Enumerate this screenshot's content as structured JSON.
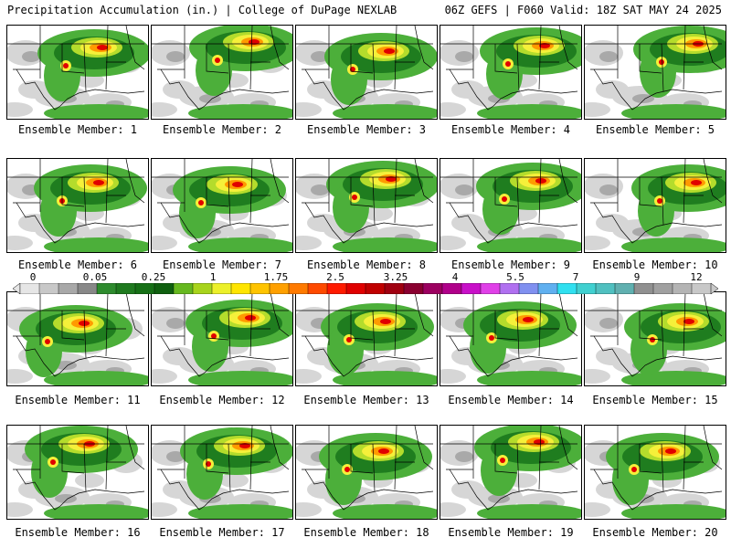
{
  "header": {
    "left": "Precipitation Accumulation (in.) | College of DuPage NEXLAB",
    "right": "06Z GEFS | F060 Valid: 18Z SAT MAY 24 2025"
  },
  "members": [
    {
      "label": "Ensemble Member: 1"
    },
    {
      "label": "Ensemble Member: 2"
    },
    {
      "label": "Ensemble Member: 3"
    },
    {
      "label": "Ensemble Member: 4"
    },
    {
      "label": "Ensemble Member: 5"
    },
    {
      "label": "Ensemble Member: 6"
    },
    {
      "label": "Ensemble Member: 7"
    },
    {
      "label": "Ensemble Member: 8"
    },
    {
      "label": "Ensemble Member: 9"
    },
    {
      "label": "Ensemble Member: 10"
    },
    {
      "label": "Ensemble Member: 11"
    },
    {
      "label": "Ensemble Member: 12"
    },
    {
      "label": "Ensemble Member: 13"
    },
    {
      "label": "Ensemble Member: 14"
    },
    {
      "label": "Ensemble Member: 15"
    },
    {
      "label": "Ensemble Member: 16"
    },
    {
      "label": "Ensemble Member: 17"
    },
    {
      "label": "Ensemble Member: 18"
    },
    {
      "label": "Ensemble Member: 19"
    },
    {
      "label": "Ensemble Member: 20"
    }
  ],
  "colorbar": {
    "tick_labels": [
      "0",
      "0.05",
      "0.25",
      "1",
      "1.75",
      "2.5",
      "3.25",
      "4",
      "5.5",
      "7",
      "9",
      "12"
    ],
    "colors": [
      "#e6e6e6",
      "#c8c8c8",
      "#a8a8a8",
      "#888888",
      "#2e8b2e",
      "#1f7a1f",
      "#167016",
      "#0f5f0f",
      "#66b81f",
      "#a8d41c",
      "#ecf02a",
      "#ffe500",
      "#ffc400",
      "#ffa000",
      "#ff7a00",
      "#ff4a00",
      "#ff1a00",
      "#e00000",
      "#c00000",
      "#a00010",
      "#8a0030",
      "#9c0060",
      "#b0008a",
      "#c810c8",
      "#e040e8",
      "#b070f0",
      "#8090f0",
      "#60b0f0",
      "#30e0f0",
      "#40d0d0",
      "#50c0c0",
      "#60b0b0",
      "#909090",
      "#a0a0a0",
      "#b4b4b4",
      "#c8c8c8"
    ]
  },
  "map_colors": {
    "land": "#ffffff",
    "light_gray": "#d6d6d6",
    "gray": "#a9a9a9",
    "green_light": "#4caf3a",
    "green_dark": "#1f7d1f",
    "yellow_green": "#b4dc2c",
    "yellow": "#f5f03a",
    "orange": "#ff9a00",
    "red": "#e00000",
    "border": "#000000"
  }
}
